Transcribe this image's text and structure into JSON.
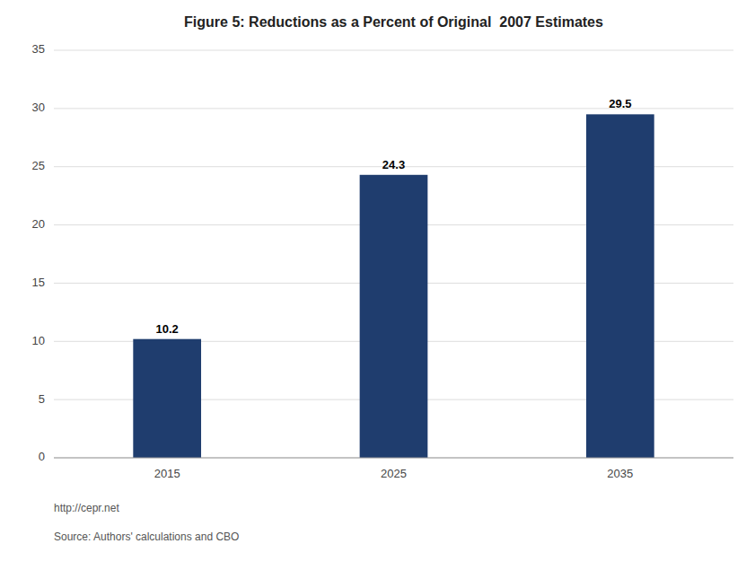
{
  "chart_data": {
    "type": "bar",
    "title": "Figure 5: Reductions as a Percent of Original  2007 Estimates",
    "categories": [
      "2015",
      "2025",
      "2035"
    ],
    "values": [
      10.2,
      24.3,
      29.5
    ],
    "color": "#1F3D6E",
    "ylim": [
      0,
      35
    ],
    "yticks": [
      0,
      5,
      10,
      15,
      20,
      25,
      30,
      35
    ],
    "grid": true,
    "data_labels": true,
    "annotations": [
      "http://cepr.net",
      "Source: Authors' calculations and CBO"
    ]
  }
}
